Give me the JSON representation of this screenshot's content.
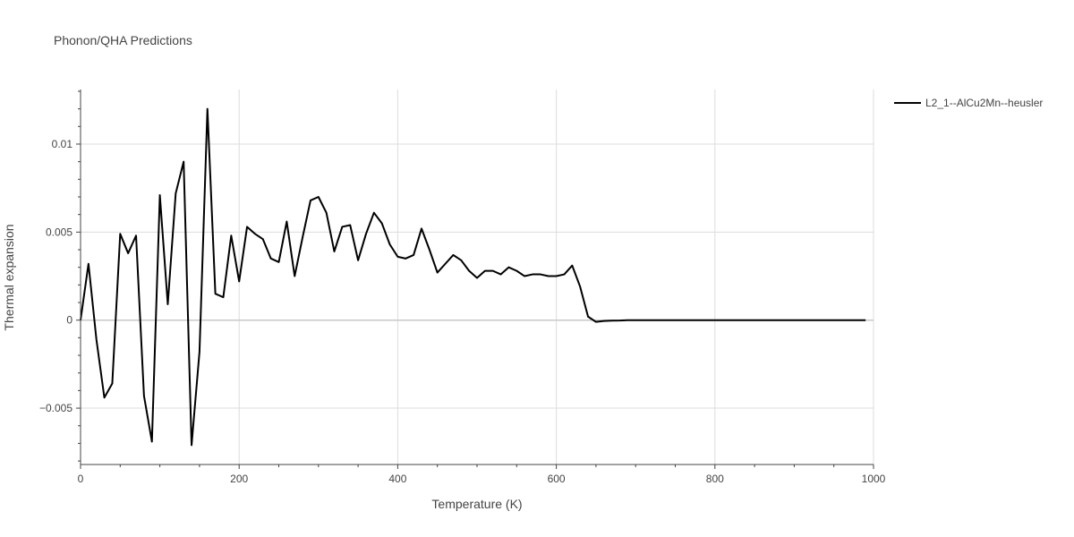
{
  "chart_data": {
    "type": "line",
    "title": "Phonon/QHA Predictions",
    "xlabel": "Temperature (K)",
    "ylabel": "Thermal expansion",
    "xlim": [
      0,
      1000
    ],
    "ylim": [
      -0.0082,
      0.0131
    ],
    "x_ticks": [
      0,
      200,
      400,
      600,
      800,
      1000
    ],
    "x_tick_labels": [
      "0",
      "200",
      "400",
      "600",
      "800",
      "1000"
    ],
    "y_ticks": [
      -0.005,
      0,
      0.005,
      0.01
    ],
    "y_tick_labels": [
      "−0.005",
      "0",
      "0.005",
      "0.01"
    ],
    "grid": true,
    "legend_position": "top-right",
    "series": [
      {
        "name": "L2_1--AlCu2Mn--heusler",
        "color": "#000000",
        "x": [
          0,
          10,
          20,
          30,
          40,
          50,
          60,
          70,
          80,
          90,
          100,
          110,
          120,
          130,
          140,
          150,
          160,
          170,
          180,
          190,
          200,
          210,
          220,
          230,
          240,
          250,
          260,
          270,
          280,
          290,
          300,
          310,
          320,
          330,
          340,
          350,
          360,
          370,
          380,
          390,
          400,
          410,
          420,
          430,
          440,
          450,
          460,
          470,
          480,
          490,
          500,
          510,
          520,
          530,
          540,
          550,
          560,
          570,
          580,
          590,
          600,
          610,
          620,
          630,
          640,
          650,
          660,
          670,
          680,
          690,
          700,
          750,
          800,
          850,
          900,
          950,
          990
        ],
        "y": [
          0.0,
          0.0032,
          -0.0011,
          -0.0044,
          -0.0036,
          0.0049,
          0.0038,
          0.0048,
          -0.0043,
          -0.0069,
          0.0071,
          0.0009,
          0.0072,
          0.009,
          -0.0071,
          -0.0018,
          0.012,
          0.0015,
          0.0013,
          0.0048,
          0.0022,
          0.0053,
          0.0049,
          0.0046,
          0.0035,
          0.0033,
          0.0056,
          0.0025,
          0.0047,
          0.0068,
          0.007,
          0.0061,
          0.0039,
          0.0053,
          0.0054,
          0.0034,
          0.0049,
          0.0061,
          0.0055,
          0.0043,
          0.0036,
          0.0035,
          0.0037,
          0.0052,
          0.004,
          0.0027,
          0.0032,
          0.0037,
          0.0034,
          0.0028,
          0.0024,
          0.0028,
          0.0028,
          0.0026,
          0.003,
          0.0028,
          0.0025,
          0.0026,
          0.0026,
          0.0025,
          0.0025,
          0.0026,
          0.0031,
          0.0019,
          0.0002,
          -0.0001,
          -5e-05,
          -3e-05,
          -2e-05,
          0.0,
          0.0,
          0.0,
          0.0,
          0.0,
          0.0,
          0.0,
          0.0
        ]
      }
    ]
  }
}
